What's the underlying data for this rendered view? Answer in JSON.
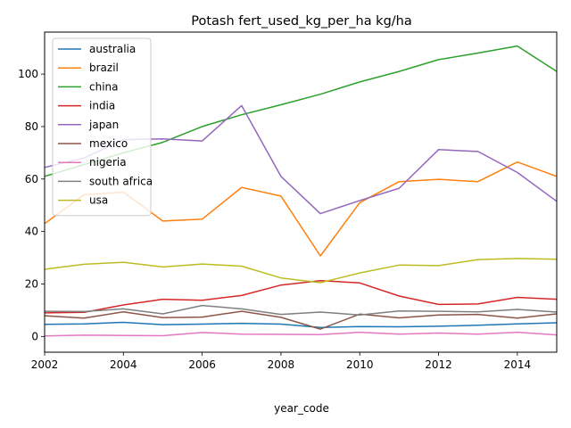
{
  "chart_data": {
    "type": "line",
    "title": "Potash fert_used_kg_per_ha kg/ha",
    "xlabel": "year_code",
    "ylabel": "",
    "xlim": [
      2002,
      2015
    ],
    "ylim": [
      -6,
      116
    ],
    "xticks": [
      2002,
      2004,
      2006,
      2008,
      2010,
      2012,
      2014
    ],
    "yticks": [
      0,
      20,
      40,
      60,
      80,
      100
    ],
    "grid": false,
    "legend_position": "top-left",
    "x": [
      2002,
      2003,
      2004,
      2005,
      2006,
      2007,
      2008,
      2009,
      2010,
      2011,
      2012,
      2013,
      2014,
      2015
    ],
    "series": [
      {
        "name": "australia",
        "color": "#1f77b4",
        "values": [
          4.6,
          4.8,
          5.4,
          4.5,
          4.7,
          5.0,
          4.7,
          3.4,
          3.8,
          3.7,
          3.9,
          4.3,
          4.8,
          5.2
        ]
      },
      {
        "name": "brazil",
        "color": "#ff7f0e",
        "values": [
          43.0,
          54.0,
          55.0,
          44.0,
          44.7,
          56.8,
          53.5,
          30.7,
          51.0,
          59.0,
          59.9,
          59.0,
          66.5,
          61.0
        ]
      },
      {
        "name": "china",
        "color": "#2ca02c",
        "values": [
          61.0,
          65.5,
          70.0,
          74.0,
          80.0,
          84.5,
          88.3,
          92.3,
          97.0,
          101.0,
          105.5,
          108.0,
          110.7,
          101.0
        ]
      },
      {
        "name": "india",
        "color": "#d62728",
        "values": [
          9.0,
          9.2,
          12.0,
          14.2,
          13.8,
          15.6,
          19.6,
          21.3,
          20.4,
          15.4,
          12.2,
          12.4,
          14.9,
          14.2
        ]
      },
      {
        "name": "japan",
        "color": "#9467bd",
        "values": [
          64.4,
          68.0,
          75.0,
          75.3,
          74.5,
          88.0,
          61.0,
          46.8,
          51.8,
          56.5,
          71.2,
          70.5,
          62.5,
          51.5
        ]
      },
      {
        "name": "mexico",
        "color": "#8c564b",
        "values": [
          7.9,
          7.0,
          9.4,
          7.2,
          7.4,
          9.6,
          7.3,
          2.8,
          8.5,
          7.1,
          8.2,
          8.4,
          7.0,
          8.6
        ]
      },
      {
        "name": "nigeria",
        "color": "#e377c2",
        "values": [
          0.2,
          0.5,
          0.4,
          0.3,
          1.5,
          0.9,
          0.8,
          0.7,
          1.6,
          0.9,
          1.3,
          0.9,
          1.6,
          0.6
        ]
      },
      {
        "name": "south africa",
        "color": "#7f7f7f",
        "values": [
          9.6,
          9.5,
          10.5,
          8.6,
          11.8,
          10.5,
          8.4,
          9.3,
          8.2,
          9.7,
          9.6,
          9.4,
          10.3,
          9.3
        ]
      },
      {
        "name": "usa",
        "color": "#bcbd22",
        "values": [
          25.6,
          27.5,
          28.3,
          26.5,
          27.6,
          26.8,
          22.3,
          20.5,
          24.2,
          27.2,
          27.0,
          29.3,
          29.7,
          29.4
        ]
      }
    ]
  }
}
